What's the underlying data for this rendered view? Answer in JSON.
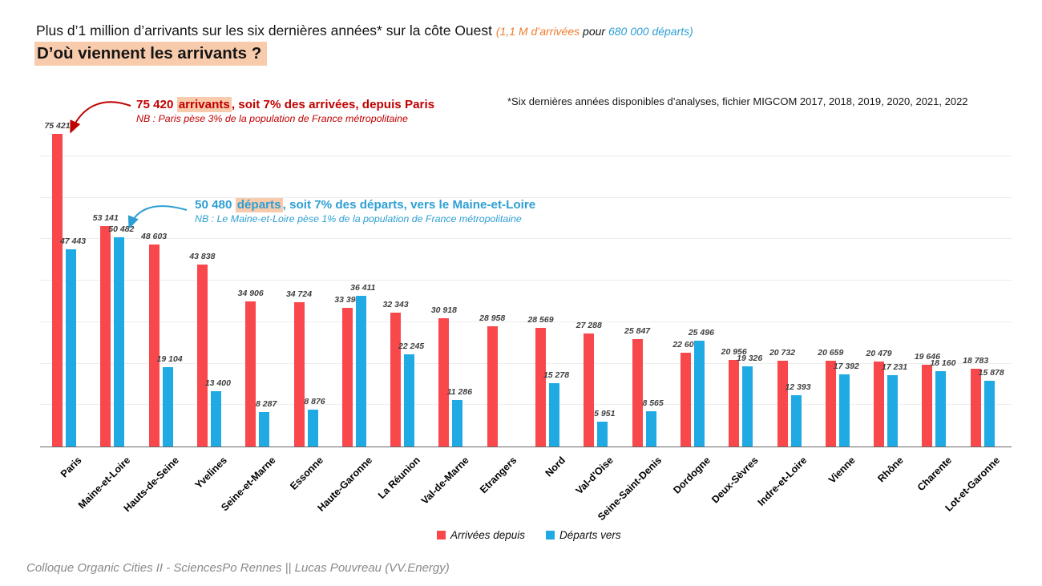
{
  "header": {
    "title_main": "Plus d’1 million d’arrivants sur les six dernières années* sur la côte Ouest ",
    "title_arrivals_part": "(1,1 M d’arrivées",
    "title_pour": " pour ",
    "title_departures_part": "680 000 départs)",
    "subtitle": "D’où viennent les arrivants ?"
  },
  "note": "*Six dernières années disponibles d’analyses, fichier MIGCOM 2017, 2018, 2019, 2020, 2021, 2022",
  "annotations": {
    "arrivals": {
      "prefix": "75 420 ",
      "highlight": "arrivants",
      "suffix": ", soit 7% des arrivées, depuis Paris",
      "nb": "NB : Paris pèse 3% de la population de France métropolitaine"
    },
    "departures": {
      "prefix": "50 480 ",
      "highlight": "départs",
      "suffix": ", soit 7% des départs, vers le Maine-et-Loire",
      "nb": "NB : Le Maine-et-Loire pèse 1% de la population de France métropolitaine"
    }
  },
  "legend": {
    "arrivals": "Arrivées depuis",
    "departures": "Départs vers"
  },
  "footer": "Colloque Organic Cities II - SciencesPo Rennes || Lucas Pouvreau (VV.Energy)",
  "colors": {
    "bar_red": "#F9484C",
    "bar_blue": "#1FAAE4",
    "text_red": "#C00000",
    "text_blue": "#2E9FD4",
    "orange": "#ED7D31",
    "highlight": "#F8CBAD",
    "grid": "#EDEDED",
    "axis": "#666666",
    "value_label": "#3F3F3F",
    "footer_gray": "#8A8A8A"
  },
  "chart_data": {
    "type": "bar",
    "categories": [
      "Paris",
      "Maine-et-Loire",
      "Hauts-de-Seine",
      "Yvelines",
      "Seine-et-Marne",
      "Essonne",
      "Haute-Garonne",
      "La Réunion",
      "Val-de-Marne",
      "Etrangers",
      "Nord",
      "Val-d'Oise",
      "Seine-Saint-Denis",
      "Dordogne",
      "Deux-Sèvres",
      "Indre-et-Loire",
      "Vienne",
      "Rhône",
      "Charente",
      "Lot-et-Garonne"
    ],
    "series": [
      {
        "name": "Arrivées depuis",
        "color_key": "bar_red",
        "values": [
          75421,
          53141,
          48603,
          43838,
          34906,
          34724,
          33394,
          32343,
          30918,
          28958,
          28569,
          27288,
          25847,
          22609,
          20956,
          20732,
          20659,
          20479,
          19646,
          18783
        ]
      },
      {
        "name": "Départs vers",
        "color_key": "bar_blue",
        "values": [
          47443,
          50482,
          19104,
          13400,
          8287,
          8876,
          36411,
          22245,
          11286,
          null,
          15278,
          5951,
          8565,
          25496,
          19326,
          12393,
          17392,
          17231,
          18160,
          15878
        ]
      }
    ],
    "ylim": [
      0,
      80000
    ],
    "gridline_step": 10000,
    "grid": true,
    "legend_position": "bottom",
    "value_labels": true,
    "number_format": "thousands-space"
  }
}
